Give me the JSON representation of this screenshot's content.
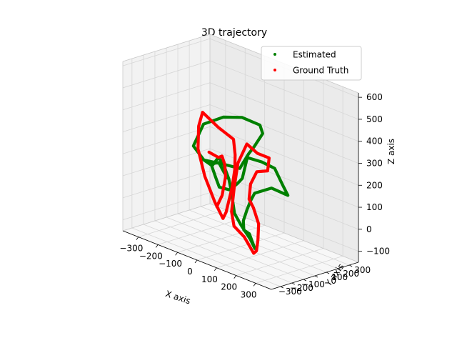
{
  "chart_data": {
    "type": "scatter",
    "projection": "3d",
    "title": "3D trajectory",
    "xlabel": "X axis",
    "ylabel": "Y axis",
    "zlabel": "Z axis",
    "xlim": [
      -380,
      380
    ],
    "ylim": [
      -380,
      380
    ],
    "zlim": [
      -150,
      620
    ],
    "x_ticks": [
      -300,
      -200,
      -100,
      0,
      100,
      200,
      300
    ],
    "y_ticks": [
      -300,
      -200,
      -100,
      0,
      100,
      200,
      300
    ],
    "z_ticks": [
      -100,
      0,
      100,
      200,
      300,
      400,
      500,
      600
    ],
    "grid": true,
    "legend": "top-right",
    "series": [
      {
        "name": "Estimated",
        "color": "#008000",
        "points": [
          [
            -100,
            20,
            400
          ],
          [
            -40,
            80,
            410
          ],
          [
            40,
            100,
            400
          ],
          [
            60,
            90,
            370
          ],
          [
            40,
            50,
            310
          ],
          [
            30,
            20,
            280
          ],
          [
            10,
            0,
            230
          ],
          [
            -10,
            10,
            200
          ],
          [
            -100,
            40,
            180
          ],
          [
            -200,
            20,
            170
          ],
          [
            -230,
            -20,
            230
          ],
          [
            -190,
            0,
            340
          ],
          [
            -100,
            20,
            400
          ]
        ],
        "segments": [
          [
            [
              -200,
              20,
              170
            ],
            [
              -140,
              -10,
              170
            ],
            [
              -90,
              -40,
              230
            ],
            [
              -40,
              -80,
              220
            ],
            [
              10,
              -120,
              180
            ],
            [
              40,
              -150,
              140
            ],
            [
              80,
              -190,
              60
            ],
            [
              130,
              -220,
              30
            ],
            [
              180,
              -220,
              -20
            ],
            [
              190,
              -200,
              -60
            ],
            [
              150,
              -180,
              -10
            ],
            [
              110,
              -160,
              -10
            ],
            [
              90,
              -130,
              20
            ],
            [
              80,
              -80,
              60
            ],
            [
              70,
              -30,
              90
            ],
            [
              60,
              20,
              110
            ],
            [
              140,
              30,
              160
            ],
            [
              230,
              20,
              160
            ],
            [
              220,
              -10,
              210
            ],
            [
              180,
              -10,
              270
            ],
            [
              120,
              -20,
              280
            ],
            [
              40,
              -10,
              270
            ],
            [
              30,
              -10,
              230
            ],
            [
              20,
              -20,
              170
            ],
            [
              0,
              -30,
              140
            ],
            [
              -20,
              -60,
              110
            ],
            [
              -80,
              -50,
              100
            ],
            [
              -110,
              -30,
              130
            ],
            [
              -140,
              -20,
              180
            ],
            [
              -100,
              -20,
              200
            ],
            [
              -60,
              -40,
              170
            ],
            [
              -30,
              -60,
              160
            ]
          ]
        ]
      },
      {
        "name": "Ground Truth",
        "color": "#ff0000",
        "points": [
          [
            -230,
            60,
            370
          ],
          [
            -150,
            60,
            330
          ],
          [
            -60,
            40,
            310
          ],
          [
            -40,
            20,
            250
          ],
          [
            -30,
            0,
            190
          ],
          [
            -20,
            -40,
            120
          ],
          [
            -10,
            -110,
            20
          ],
          [
            -20,
            -120,
            -10
          ],
          [
            -80,
            -90,
            40
          ],
          [
            -160,
            -40,
            120
          ],
          [
            -230,
            20,
            210
          ],
          [
            -250,
            60,
            300
          ],
          [
            -230,
            60,
            370
          ]
        ],
        "segments": [
          [
            [
              -150,
              -20,
              230
            ],
            [
              -90,
              -40,
              230
            ],
            [
              -60,
              -60,
              250
            ],
            [
              -40,
              -70,
              220
            ],
            [
              -30,
              -80,
              170
            ],
            [
              -30,
              -110,
              90
            ],
            [
              -40,
              -140,
              40
            ]
          ],
          [
            [
              20,
              20,
              320
            ],
            [
              80,
              10,
              300
            ],
            [
              140,
              10,
              300
            ],
            [
              150,
              -20,
              250
            ],
            [
              100,
              -30,
              230
            ],
            [
              80,
              -50,
              170
            ],
            [
              90,
              -80,
              110
            ],
            [
              130,
              -110,
              90
            ],
            [
              180,
              -150,
              40
            ],
            [
              200,
              -190,
              -20
            ],
            [
              210,
              -220,
              -60
            ],
            [
              190,
              -210,
              -80
            ],
            [
              130,
              -190,
              -30
            ],
            [
              60,
              -160,
              -10
            ],
            [
              30,
              -130,
              40
            ],
            [
              20,
              -90,
              140
            ],
            [
              10,
              -40,
              240
            ],
            [
              20,
              20,
              320
            ]
          ]
        ]
      }
    ]
  }
}
